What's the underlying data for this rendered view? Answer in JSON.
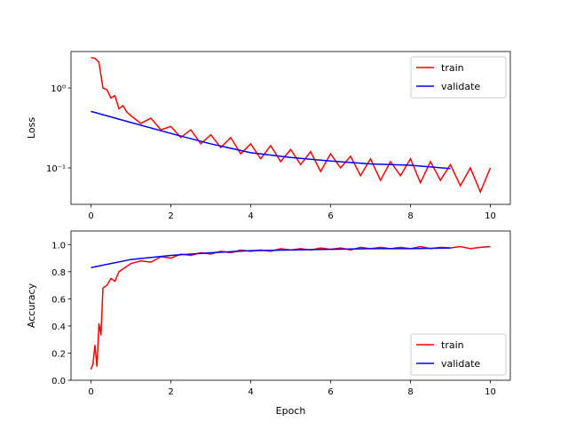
{
  "chart_data": [
    {
      "type": "line",
      "ylabel": "Loss",
      "log_y": true,
      "legend": "upper right",
      "xlim": [
        -0.5,
        10.5
      ],
      "xticks": [
        0,
        2,
        4,
        6,
        8,
        10
      ],
      "ylim": [
        0.035,
        2.86
      ],
      "yticks": [
        {
          "value": 1,
          "label": "10⁰"
        },
        {
          "value": 0.1,
          "label": "10⁻¹"
        }
      ],
      "series": [
        {
          "name": "train",
          "color": "#ff0000",
          "x": [
            0,
            0.1,
            0.2,
            0.3,
            0.4,
            0.5,
            0.6,
            0.7,
            0.8,
            0.9,
            1.0,
            1.25,
            1.5,
            1.75,
            2.0,
            2.25,
            2.5,
            2.75,
            3.0,
            3.25,
            3.5,
            3.75,
            4.0,
            4.25,
            4.5,
            4.75,
            5.0,
            5.25,
            5.5,
            5.75,
            6.0,
            6.25,
            6.5,
            6.75,
            7.0,
            7.25,
            7.5,
            7.75,
            8.0,
            8.25,
            8.5,
            8.75,
            9.0,
            9.25,
            9.5,
            9.75,
            10.0
          ],
          "values": [
            2.4,
            2.35,
            2.1,
            1.0,
            0.95,
            0.75,
            0.8,
            0.55,
            0.6,
            0.5,
            0.45,
            0.36,
            0.42,
            0.3,
            0.33,
            0.24,
            0.3,
            0.2,
            0.26,
            0.18,
            0.24,
            0.15,
            0.2,
            0.13,
            0.19,
            0.12,
            0.17,
            0.11,
            0.16,
            0.09,
            0.15,
            0.1,
            0.14,
            0.08,
            0.13,
            0.07,
            0.12,
            0.08,
            0.13,
            0.065,
            0.12,
            0.07,
            0.11,
            0.06,
            0.1,
            0.05,
            0.1
          ]
        },
        {
          "name": "validate",
          "color": "#0000ff",
          "x": [
            0,
            1,
            2,
            3,
            4,
            5,
            6,
            7,
            8,
            9
          ],
          "values": [
            0.51,
            0.37,
            0.27,
            0.2,
            0.155,
            0.135,
            0.122,
            0.112,
            0.108,
            0.098
          ]
        }
      ]
    },
    {
      "type": "line",
      "xlabel": "Epoch",
      "ylabel": "Accuracy",
      "log_y": false,
      "legend": "lower right",
      "xlim": [
        -0.5,
        10.5
      ],
      "xticks": [
        0,
        2,
        4,
        6,
        8,
        10
      ],
      "ylim": [
        0,
        1.1
      ],
      "yticks": [
        {
          "value": 0,
          "label": "0.0"
        },
        0.2,
        0.4,
        0.6,
        0.8,
        {
          "value": 1,
          "label": "1.0"
        }
      ],
      "series": [
        {
          "name": "train",
          "color": "#ff0000",
          "x": [
            0,
            0.05,
            0.1,
            0.15,
            0.2,
            0.25,
            0.3,
            0.4,
            0.5,
            0.6,
            0.7,
            0.8,
            0.9,
            1.0,
            1.25,
            1.5,
            1.75,
            2.0,
            2.25,
            2.5,
            2.75,
            3.0,
            3.25,
            3.5,
            3.75,
            4.0,
            4.25,
            4.5,
            4.75,
            5.0,
            5.25,
            5.5,
            5.75,
            6.0,
            6.25,
            6.5,
            6.75,
            7.0,
            7.25,
            7.5,
            7.75,
            8.0,
            8.25,
            8.5,
            8.75,
            9.0,
            9.25,
            9.5,
            9.75,
            10.0
          ],
          "values": [
            0.08,
            0.12,
            0.26,
            0.1,
            0.42,
            0.33,
            0.68,
            0.7,
            0.75,
            0.73,
            0.8,
            0.82,
            0.84,
            0.86,
            0.88,
            0.87,
            0.91,
            0.9,
            0.93,
            0.92,
            0.94,
            0.93,
            0.95,
            0.94,
            0.96,
            0.95,
            0.96,
            0.95,
            0.97,
            0.96,
            0.97,
            0.96,
            0.975,
            0.965,
            0.975,
            0.96,
            0.98,
            0.97,
            0.98,
            0.97,
            0.98,
            0.97,
            0.985,
            0.97,
            0.98,
            0.975,
            0.985,
            0.97,
            0.98,
            0.985
          ]
        },
        {
          "name": "validate",
          "color": "#0000ff",
          "x": [
            0,
            1,
            2,
            3,
            4,
            5,
            6,
            7,
            8,
            9
          ],
          "values": [
            0.83,
            0.89,
            0.92,
            0.94,
            0.955,
            0.96,
            0.965,
            0.97,
            0.97,
            0.975
          ]
        }
      ]
    }
  ]
}
